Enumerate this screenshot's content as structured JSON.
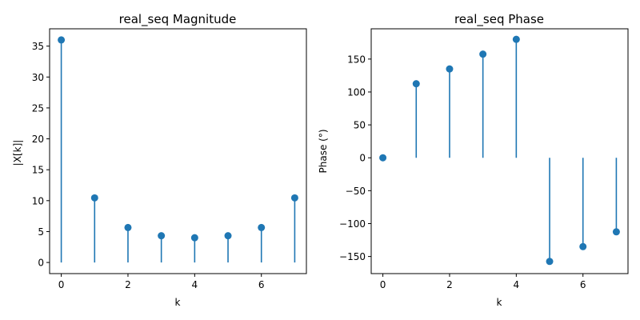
{
  "colors": {
    "stem": "#1f77b4",
    "axis": "#000000",
    "background": "#ffffff"
  },
  "chart_data": [
    {
      "type": "stem",
      "title": "real_seq Magnitude",
      "xlabel": "k",
      "ylabel": "|X[k]|",
      "x": [
        0,
        1,
        2,
        3,
        4,
        5,
        6,
        7
      ],
      "values": [
        36,
        10.45,
        5.65,
        4.33,
        4.0,
        4.33,
        5.65,
        10.45
      ],
      "xlim": [
        -0.35,
        7.35
      ],
      "ylim": [
        -1.8,
        37.8
      ],
      "xticks": [
        0,
        2,
        4,
        6
      ],
      "xtick_labels": [
        "0",
        "2",
        "4",
        "6"
      ],
      "yticks": [
        0,
        5,
        10,
        15,
        20,
        25,
        30,
        35
      ],
      "ytick_labels": [
        "0",
        "5",
        "10",
        "15",
        "20",
        "25",
        "30",
        "35"
      ],
      "grid": false,
      "baseline": 0
    },
    {
      "type": "stem",
      "title": "real_seq Phase",
      "xlabel": "k",
      "ylabel": "Phase (°)",
      "x": [
        0,
        1,
        2,
        3,
        4,
        5,
        6,
        7
      ],
      "values": [
        0,
        112.5,
        135,
        157.5,
        180,
        -157.5,
        -135,
        -112.5
      ],
      "xlim": [
        -0.35,
        7.35
      ],
      "ylim": [
        -176,
        196
      ],
      "xticks": [
        0,
        2,
        4,
        6
      ],
      "xtick_labels": [
        "0",
        "2",
        "4",
        "6"
      ],
      "yticks": [
        -150,
        -100,
        -50,
        0,
        50,
        100,
        150
      ],
      "ytick_labels": [
        "−150",
        "−100",
        "−50",
        "0",
        "50",
        "100",
        "150"
      ],
      "grid": false,
      "baseline": 0
    }
  ]
}
